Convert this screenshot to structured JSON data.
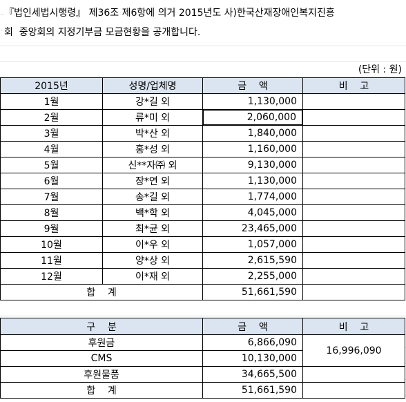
{
  "intro": {
    "line1": "『법인세법시행령』 제36조 제6항에 의거 2015년도 사)한국산재장애인복지진흥",
    "line2": "회  중앙회의 지정기부금 모금현황을 공개합니다."
  },
  "unit": "(단위 : 원)",
  "monthly_table": {
    "header": [
      "2015년",
      "성명/업체명",
      "금    액",
      "비    고"
    ],
    "rows": [
      {
        "month": "1월",
        "name": "강*길 외",
        "amount": "1,130,000"
      },
      {
        "month": "2월",
        "name": "류*미 외",
        "amount": "2,060,000"
      },
      {
        "month": "3월",
        "name": "박*산 외",
        "amount": "1,840,000"
      },
      {
        "month": "4월",
        "name": "홍*성 외",
        "amount": "1,160,000"
      },
      {
        "month": "5월",
        "name": "신**자㈜ 외",
        "amount": "9,130,000"
      },
      {
        "month": "6월",
        "name": "장*연 외",
        "amount": "1,130,000"
      },
      {
        "month": "7월",
        "name": "송*길 외",
        "amount": "1,774,000"
      },
      {
        "month": "8월",
        "name": "백*학 외",
        "amount": "4,045,000"
      },
      {
        "month": "9월",
        "name": "최*균 외",
        "amount": "23,465,000"
      },
      {
        "month": "10월",
        "name": "이*우 외",
        "amount": "1,057,000"
      },
      {
        "month": "11월",
        "name": "양*상 외",
        "amount": "2,615,590"
      },
      {
        "month": "12월",
        "name": "이*재 외",
        "amount": "2,255,000"
      }
    ],
    "total": {
      "label": "합    계",
      "amount": "51,661,590"
    }
  },
  "type_table": {
    "header": [
      "구    분",
      "금    액",
      "비    고"
    ],
    "rows": [
      {
        "category": "후원금",
        "amount": "6,866,090"
      },
      {
        "category": "CMS",
        "amount": "10,130,000"
      },
      {
        "category": "후원물품",
        "amount": "34,665,500"
      }
    ],
    "note": "16,996,090",
    "total": {
      "label": "합    계",
      "amount": "51,661,590"
    }
  }
}
